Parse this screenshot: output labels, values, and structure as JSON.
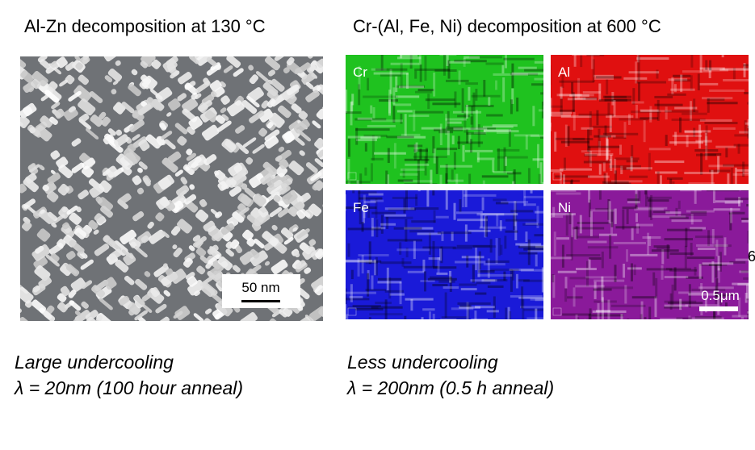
{
  "left": {
    "title": "Al-Zn decomposition at 130 °C",
    "scale_bar": "50 nm",
    "caption": {
      "line1": "Large undercooling",
      "line2": "λ = 20nm (100 hour anneal)"
    }
  },
  "right": {
    "title": "Cr-(Al, Fe, Ni) decomposition at 600 °C",
    "maps": [
      {
        "label": "Cr",
        "color": "#1fc21f"
      },
      {
        "label": "Al",
        "color": "#e01010"
      },
      {
        "label": "Fe",
        "color": "#1a1ad8"
      },
      {
        "label": "Ni",
        "color": "#8a1a9a"
      }
    ],
    "scale_bar": "0.5μm",
    "edge_text": "6",
    "caption": {
      "line1": "Less undercooling",
      "line2": "λ = 200nm (0.5 h anneal)"
    }
  }
}
